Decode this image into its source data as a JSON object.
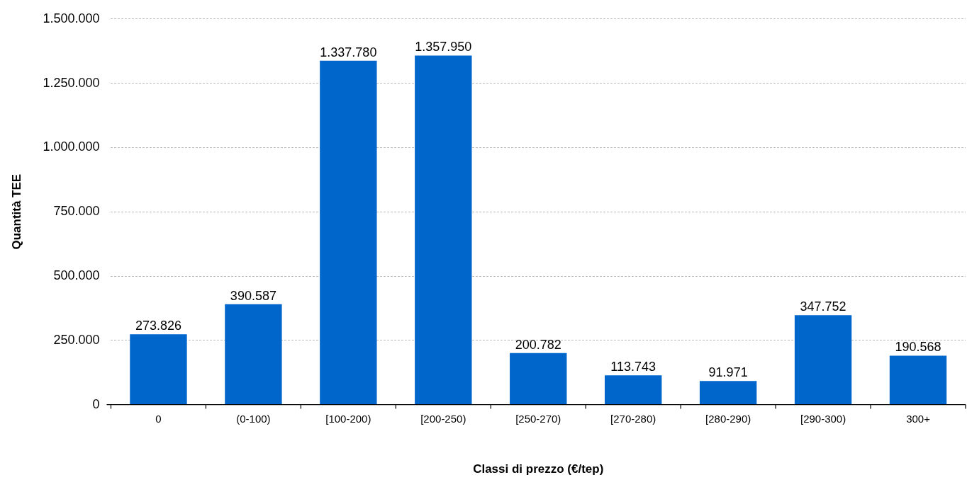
{
  "chart_data": {
    "type": "bar",
    "xlabel": "Classi di prezzo (€/tep)",
    "ylabel": "Quantità TEE",
    "categories": [
      "0",
      "(0-100)",
      "[100-200)",
      "[200-250)",
      "[250-270)",
      "[270-280)",
      "[280-290)",
      "[290-300)",
      "300+"
    ],
    "values": [
      273826,
      390587,
      1337780,
      1357950,
      200782,
      113743,
      91971,
      347752,
      190568
    ],
    "value_labels": [
      "273.826",
      "390.587",
      "1.337.780",
      "1.357.950",
      "200.782",
      "113.743",
      "91.971",
      "347.752",
      "190.568"
    ],
    "color": "#0066cc",
    "ylim": [
      0,
      1500000
    ],
    "yticks": [
      0,
      {
        "value": 250000,
        "label": "250.000"
      },
      {
        "value": 500000,
        "label": "500.000"
      },
      {
        "value": 750000,
        "label": "750.000"
      },
      {
        "value": 1000000,
        "label": "1.000.000"
      },
      {
        "value": 1250000,
        "label": "1.250.000"
      },
      {
        "value": 1500000,
        "label": "1.500.000"
      }
    ],
    "grid": "y",
    "legend": false
  }
}
